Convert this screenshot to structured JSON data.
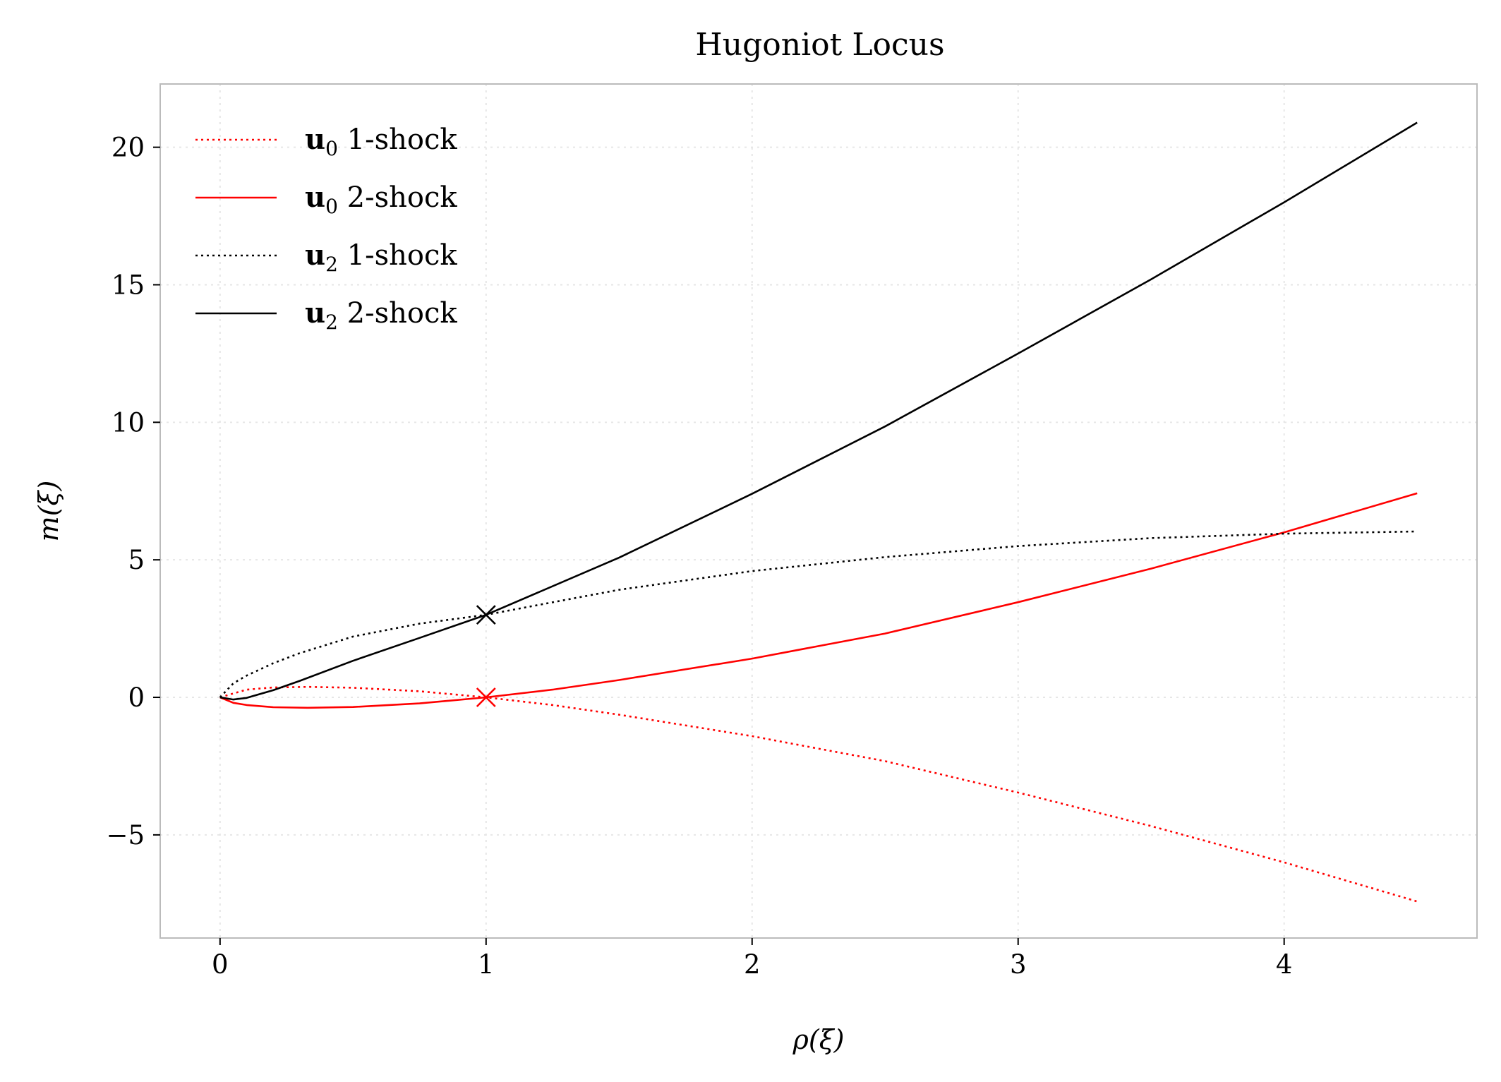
{
  "chart_data": {
    "type": "line",
    "title": "Hugoniot Locus",
    "xlabel": "ρ(ξ)",
    "ylabel": "m(ξ)",
    "xlim": [
      -0.225,
      4.725
    ],
    "ylim": [
      -8.75,
      22.3
    ],
    "xticks": [
      0,
      1,
      2,
      3,
      4
    ],
    "yticks": [
      -5,
      0,
      5,
      10,
      15,
      20
    ],
    "ytick_labels": [
      "−5",
      "0",
      "5",
      "10",
      "15",
      "20"
    ],
    "grid": true,
    "legend_position": "top-left",
    "series": [
      {
        "name": "u0 1-shock",
        "name_bold": "u",
        "name_sub": "0",
        "name_rest": " 1-shock",
        "color": "#ff0000",
        "dash": "dotted",
        "x": [
          0.0,
          0.1,
          0.2,
          0.33,
          0.5,
          0.75,
          1.0,
          1.25,
          1.5,
          2.0,
          2.5,
          3.0,
          3.5,
          4.0,
          4.5
        ],
        "y": [
          0.0,
          0.28,
          0.36,
          0.38,
          0.35,
          0.22,
          0.0,
          -0.28,
          -0.63,
          -1.41,
          -2.32,
          -3.46,
          -4.68,
          -6.0,
          -7.42
        ]
      },
      {
        "name": "u0 2-shock",
        "name_bold": "u",
        "name_sub": "0",
        "name_rest": " 2-shock",
        "color": "#ff0000",
        "dash": "solid",
        "x": [
          0.0,
          0.05,
          0.1,
          0.2,
          0.33,
          0.5,
          0.75,
          1.0,
          1.25,
          1.5,
          2.0,
          2.5,
          3.0,
          3.5,
          4.0,
          4.5
        ],
        "y": [
          0.0,
          -0.2,
          -0.28,
          -0.36,
          -0.38,
          -0.35,
          -0.22,
          0.0,
          0.28,
          0.63,
          1.41,
          2.32,
          3.46,
          4.68,
          6.0,
          7.42
        ]
      },
      {
        "name": "u2 1-shock",
        "name_bold": "u",
        "name_sub": "2",
        "name_rest": " 1-shock",
        "color": "#000000",
        "dash": "dotted",
        "x": [
          0.0,
          0.05,
          0.1,
          0.2,
          0.3,
          0.5,
          0.75,
          1.0,
          1.5,
          2.0,
          2.5,
          3.0,
          3.5,
          4.0,
          4.5
        ],
        "y": [
          0.0,
          0.51,
          0.79,
          1.24,
          1.61,
          2.21,
          2.68,
          3.0,
          3.91,
          4.59,
          5.1,
          5.5,
          5.79,
          5.95,
          6.03
        ]
      },
      {
        "name": "u2 2-shock",
        "name_bold": "u",
        "name_sub": "2",
        "name_rest": " 2-shock",
        "color": "#000000",
        "dash": "solid",
        "x": [
          0.0,
          0.05,
          0.1,
          0.2,
          0.3,
          0.5,
          0.75,
          1.0,
          1.5,
          2.0,
          2.5,
          3.0,
          3.5,
          4.0,
          4.5
        ],
        "y": [
          0.0,
          -0.08,
          -0.02,
          0.26,
          0.6,
          1.33,
          2.16,
          3.0,
          5.08,
          7.4,
          9.85,
          12.5,
          15.2,
          18.0,
          20.9
        ]
      }
    ],
    "markers": [
      {
        "x": 1,
        "y": 0,
        "symbol": "x",
        "color": "#ff0000"
      },
      {
        "x": 1,
        "y": 3,
        "symbol": "x",
        "color": "#000000"
      }
    ]
  }
}
